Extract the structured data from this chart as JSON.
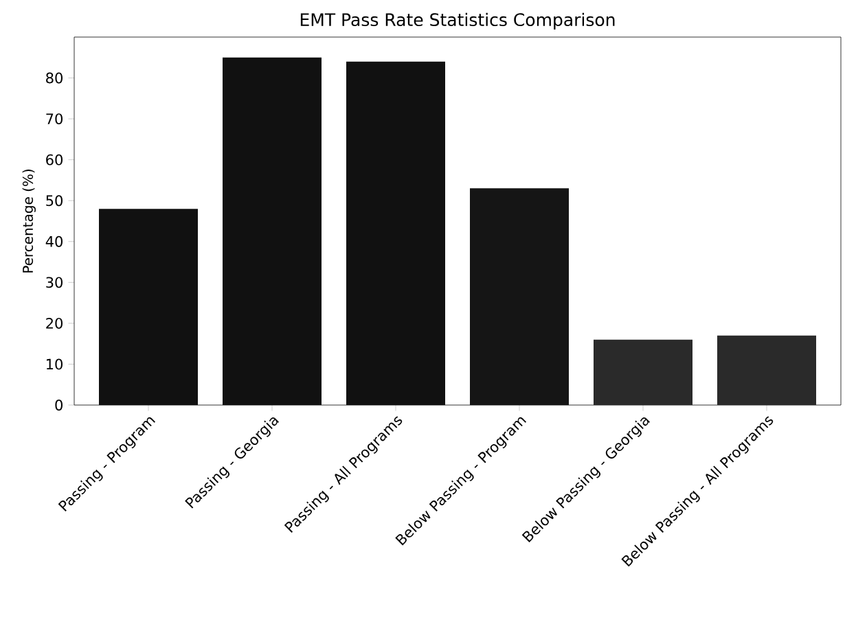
{
  "chart_data": {
    "type": "bar",
    "title": "EMT Pass Rate Statistics Comparison",
    "ylabel": "Percentage (%)",
    "categories": [
      "Passing - Program",
      "Passing - Georgia",
      "Passing - All Programs",
      "Below Passing - Program",
      "Below Passing - Georgia",
      "Below Passing - All Programs"
    ],
    "values": [
      48,
      85,
      84,
      53,
      16,
      17
    ],
    "colors": [
      "#111111",
      "#111111",
      "#111111",
      "#151515",
      "#2a2a2a",
      "#2a2a2a"
    ],
    "ylim": [
      0,
      90
    ],
    "yticks": [
      0,
      10,
      20,
      30,
      40,
      50,
      60,
      70,
      80
    ],
    "grid": false
  }
}
